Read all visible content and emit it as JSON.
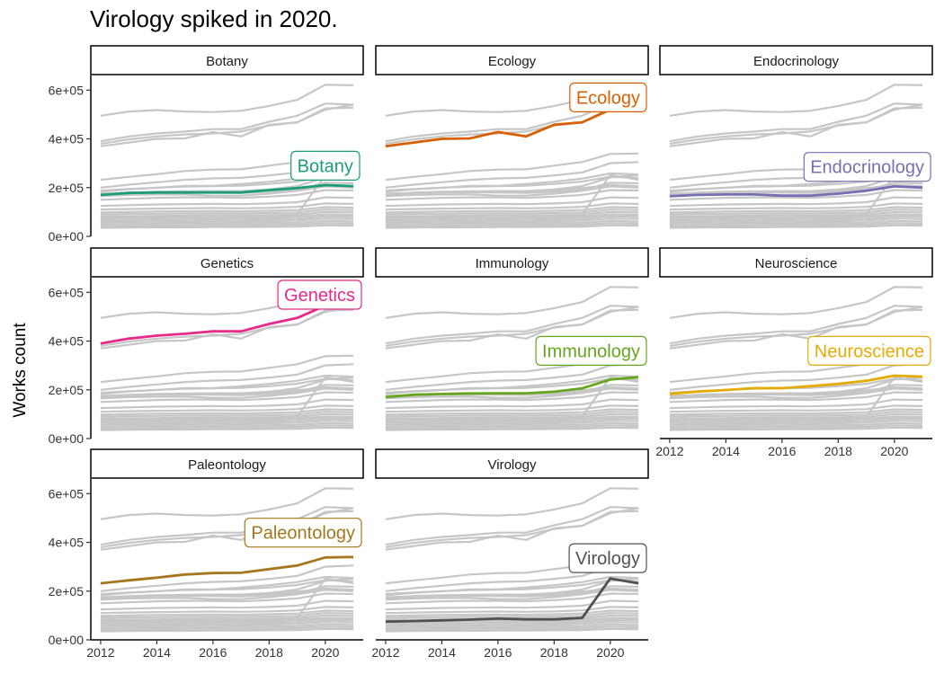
{
  "chart_data": {
    "type": "line",
    "title": "Virology spiked in 2020.",
    "xlabel": "",
    "ylabel": "Works count",
    "x": [
      2012,
      2013,
      2014,
      2015,
      2016,
      2017,
      2018,
      2019,
      2020,
      2021
    ],
    "xlim": [
      2011.65,
      2021.35
    ],
    "ylim": [
      0,
      660000
    ],
    "x_ticks": [
      2012,
      2014,
      2016,
      2018,
      2020
    ],
    "x_tick_labels": [
      "2012",
      "2014",
      "2016",
      "2018",
      "2020"
    ],
    "y_ticks": [
      0,
      200000,
      400000,
      600000
    ],
    "y_tick_labels": [
      "0e+00",
      "2e+05",
      "4e+05",
      "6e+05"
    ],
    "legend": "none",
    "grid": false,
    "highlighted_fields": [
      {
        "name": "Botany",
        "color": "#1b9e77",
        "label_year": 2020,
        "label_value": 290000,
        "values": [
          170000,
          178000,
          180000,
          180000,
          180000,
          180000,
          190000,
          198000,
          210000,
          206000
        ]
      },
      {
        "name": "Ecology",
        "color": "#d95f02",
        "label_year": 2020,
        "label_value": 570000,
        "values": [
          370000,
          385000,
          400000,
          402000,
          428000,
          410000,
          458000,
          468000,
          520000,
          540000
        ]
      },
      {
        "name": "Endocrinology",
        "color": "#7570b3",
        "label_year": 2020,
        "label_value": 285000,
        "values": [
          165000,
          170000,
          172000,
          172000,
          167000,
          167000,
          175000,
          187000,
          205000,
          200000
        ]
      },
      {
        "name": "Genetics",
        "color": "#e7298a",
        "label_year": 2020,
        "label_value": 590000,
        "values": [
          390000,
          410000,
          422000,
          430000,
          440000,
          440000,
          470000,
          495000,
          545000,
          540000
        ]
      },
      {
        "name": "Immunology",
        "color": "#66a61e",
        "label_year": 2020,
        "label_value": 360000,
        "values": [
          170000,
          180000,
          183000,
          185000,
          186000,
          186000,
          192000,
          206000,
          242000,
          252000
        ]
      },
      {
        "name": "Neuroscience",
        "color": "#e6ab02",
        "label_year": 2020,
        "label_value": 360000,
        "values": [
          183000,
          193000,
          199000,
          207000,
          207000,
          215000,
          224000,
          237000,
          258000,
          254000
        ]
      },
      {
        "name": "Paleontology",
        "color": "#a6761d",
        "label_year": 2020,
        "label_value": 440000,
        "values": [
          232000,
          244000,
          255000,
          268000,
          274000,
          275000,
          290000,
          305000,
          338000,
          340000
        ]
      },
      {
        "name": "Virology",
        "color": "#505050",
        "label_year": 2020,
        "label_value": 335000,
        "values": [
          75000,
          77000,
          80000,
          83000,
          87000,
          84000,
          84000,
          90000,
          252000,
          232000
        ]
      }
    ],
    "background_series": [
      {
        "name": "bg-1",
        "values": [
          495000,
          512000,
          518000,
          512000,
          510000,
          515000,
          535000,
          560000,
          622000,
          620000
        ]
      },
      {
        "name": "bg-2",
        "values": [
          380000,
          398000,
          410000,
          418000,
          422000,
          430000,
          455000,
          468000,
          525000,
          528000
        ]
      },
      {
        "name": "bg-3",
        "values": [
          200000,
          212000,
          222000,
          232000,
          238000,
          240000,
          250000,
          262000,
          300000,
          305000
        ]
      },
      {
        "name": "bg-4",
        "values": [
          188000,
          194000,
          200000,
          204000,
          206000,
          208000,
          215000,
          225000,
          245000,
          240000
        ]
      },
      {
        "name": "bg-5",
        "values": [
          175000,
          178000,
          182000,
          183000,
          180000,
          178000,
          183000,
          190000,
          220000,
          218000
        ]
      },
      {
        "name": "bg-6",
        "values": [
          150000,
          154000,
          158000,
          160000,
          160000,
          158000,
          163000,
          170000,
          190000,
          188000
        ]
      },
      {
        "name": "bg-7",
        "values": [
          125000,
          128000,
          131000,
          132000,
          133000,
          132000,
          135000,
          140000,
          160000,
          158000
        ]
      },
      {
        "name": "bg-8",
        "values": [
          110000,
          112000,
          114000,
          115000,
          116000,
          115000,
          117000,
          121000,
          135000,
          133000
        ]
      },
      {
        "name": "bg-9",
        "values": [
          98000,
          100000,
          102000,
          103000,
          104000,
          103000,
          105000,
          108000,
          120000,
          118000
        ]
      },
      {
        "name": "bg-10",
        "values": [
          90000,
          92000,
          93000,
          94000,
          95000,
          94000,
          96000,
          98000,
          110000,
          108000
        ]
      },
      {
        "name": "bg-11",
        "values": [
          82000,
          83000,
          84000,
          85000,
          86000,
          85000,
          87000,
          89000,
          100000,
          98000
        ]
      },
      {
        "name": "bg-12",
        "values": [
          74000,
          75000,
          76000,
          77000,
          78000,
          77000,
          79000,
          81000,
          90000,
          88000
        ]
      },
      {
        "name": "bg-13",
        "values": [
          66000,
          67000,
          68000,
          69000,
          70000,
          69000,
          71000,
          73000,
          82000,
          80000
        ]
      },
      {
        "name": "bg-14",
        "values": [
          58000,
          59000,
          60000,
          61000,
          62000,
          61000,
          63000,
          65000,
          73000,
          71000
        ]
      },
      {
        "name": "bg-15",
        "values": [
          50000,
          51000,
          52000,
          53000,
          54000,
          53000,
          55000,
          56000,
          63000,
          61000
        ]
      },
      {
        "name": "bg-16",
        "values": [
          42000,
          43000,
          44000,
          45000,
          46000,
          45000,
          47000,
          48000,
          54000,
          52000
        ]
      },
      {
        "name": "bg-17",
        "values": [
          35000,
          36000,
          37000,
          37000,
          38000,
          38000,
          39000,
          40000,
          45000,
          44000
        ]
      }
    ]
  }
}
